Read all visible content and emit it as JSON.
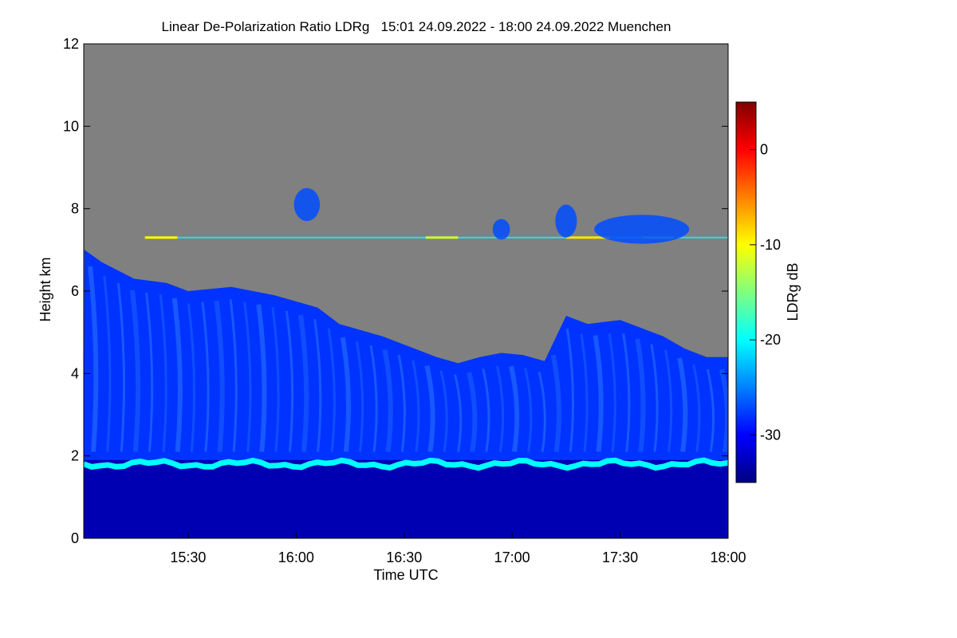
{
  "chart_data": {
    "type": "heatmap",
    "title": "Linear De-Polarization Ratio LDRg   15:01 24.09.2022 - 18:00 24.09.2022 Muenchen",
    "xlabel": "Time UTC",
    "ylabel": "Height km",
    "x_range": [
      "15:01",
      "18:00"
    ],
    "x_ticks": [
      "15:30",
      "16:00",
      "16:30",
      "17:00",
      "17:30",
      "18:00"
    ],
    "ylim": [
      0,
      12
    ],
    "y_ticks": [
      "0",
      "2",
      "4",
      "6",
      "8",
      "10",
      "12"
    ],
    "colorbar": {
      "label": "LDRg dB",
      "range": [
        -35,
        5
      ],
      "ticks": [
        "0",
        "-10",
        "-20",
        "-30"
      ],
      "colors": [
        "#000080",
        "#0000ff",
        "#0080ff",
        "#00ffff",
        "#80ff80",
        "#ffff00",
        "#ff8000",
        "#ff0000",
        "#800000"
      ]
    },
    "no_signal_color": "#808080",
    "features": {
      "boundary_layer_top_km": 1.9,
      "boundary_layer_ldr_db": -20,
      "aerosol_layer_ldr_db": -28,
      "below_layer_ldr_db": -33,
      "cirrus_height_km": 7.3,
      "signal_top_km": [
        [
          15.02,
          7.0
        ],
        [
          15.1,
          6.7
        ],
        [
          15.25,
          6.3
        ],
        [
          15.4,
          6.2
        ],
        [
          15.5,
          6.0
        ],
        [
          15.7,
          6.1
        ],
        [
          15.9,
          5.9
        ],
        [
          16.1,
          5.6
        ],
        [
          16.2,
          5.2
        ],
        [
          16.4,
          4.9
        ],
        [
          16.55,
          4.6
        ],
        [
          16.65,
          4.4
        ],
        [
          16.75,
          4.25
        ],
        [
          16.85,
          4.4
        ],
        [
          16.95,
          4.5
        ],
        [
          17.05,
          4.45
        ],
        [
          17.15,
          4.3
        ],
        [
          17.25,
          5.4
        ],
        [
          17.35,
          5.2
        ],
        [
          17.5,
          5.3
        ],
        [
          17.6,
          5.1
        ],
        [
          17.7,
          4.9
        ],
        [
          17.8,
          4.6
        ],
        [
          17.9,
          4.4
        ],
        [
          18.0,
          4.4
        ]
      ]
    }
  }
}
